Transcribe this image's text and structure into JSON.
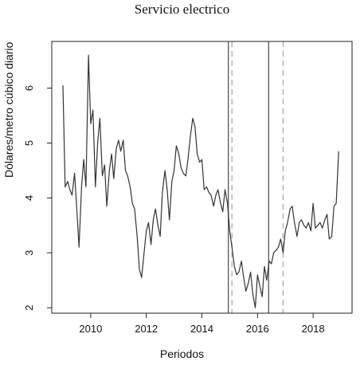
{
  "chart_data": {
    "type": "line",
    "title": "Servicio electrico",
    "xlabel": "Periodos",
    "ylabel": "Dólares/metro cúbico diario",
    "xlim": [
      2008.6,
      2019.4
    ],
    "ylim": [
      1.9,
      6.85
    ],
    "x_ticks": [
      2010,
      2012,
      2014,
      2016,
      2018
    ],
    "y_ticks": [
      2,
      3,
      4,
      5,
      6
    ],
    "grid": false,
    "series": [
      {
        "x": [
          2009.0,
          2009.08,
          2009.17,
          2009.25,
          2009.33,
          2009.42,
          2009.5,
          2009.58,
          2009.67,
          2009.75,
          2009.83,
          2009.92,
          2010.0,
          2010.08,
          2010.17,
          2010.25,
          2010.33,
          2010.42,
          2010.5,
          2010.58,
          2010.67,
          2010.75,
          2010.83,
          2010.92,
          2011.0,
          2011.08,
          2011.17,
          2011.25,
          2011.33,
          2011.42,
          2011.5,
          2011.58,
          2011.67,
          2011.75,
          2011.83,
          2011.92,
          2012.0,
          2012.08,
          2012.17,
          2012.25,
          2012.33,
          2012.42,
          2012.5,
          2012.58,
          2012.67,
          2012.75,
          2012.83,
          2012.92,
          2013.0,
          2013.08,
          2013.17,
          2013.25,
          2013.33,
          2013.42,
          2013.5,
          2013.58,
          2013.67,
          2013.75,
          2013.83,
          2013.92,
          2014.0,
          2014.08,
          2014.17,
          2014.25,
          2014.33,
          2014.42,
          2014.5,
          2014.58,
          2014.67,
          2014.75,
          2014.83,
          2014.92,
          2015.0,
          2015.08,
          2015.17,
          2015.25,
          2015.33,
          2015.42,
          2015.5,
          2015.58,
          2015.67,
          2015.75,
          2015.83,
          2015.92,
          2016.0,
          2016.08,
          2016.17,
          2016.25,
          2016.33,
          2016.42,
          2016.5,
          2016.58,
          2016.67,
          2016.75,
          2016.83,
          2016.92,
          2017.0,
          2017.08,
          2017.17,
          2017.25,
          2017.33,
          2017.42,
          2017.5,
          2017.58,
          2017.67,
          2017.75,
          2017.83,
          2017.92,
          2018.0,
          2018.08,
          2018.17,
          2018.25,
          2018.33,
          2018.42,
          2018.5,
          2018.58,
          2018.67,
          2018.75,
          2018.83,
          2018.92
        ],
        "y": [
          6.05,
          4.2,
          4.3,
          4.15,
          4.05,
          4.45,
          3.8,
          3.1,
          4.2,
          4.7,
          4.2,
          6.6,
          5.35,
          5.6,
          4.2,
          5.0,
          5.45,
          4.4,
          4.6,
          3.85,
          4.5,
          4.8,
          4.35,
          4.9,
          5.05,
          4.85,
          5.05,
          4.5,
          4.4,
          4.2,
          3.9,
          3.8,
          3.3,
          2.7,
          2.55,
          3.0,
          3.4,
          3.55,
          3.15,
          3.6,
          3.8,
          3.5,
          3.3,
          4.1,
          4.5,
          4.15,
          3.6,
          4.3,
          4.5,
          4.95,
          4.8,
          4.55,
          4.45,
          4.4,
          4.7,
          5.1,
          5.45,
          5.3,
          4.8,
          4.65,
          4.7,
          4.15,
          4.2,
          4.1,
          4.05,
          3.85,
          4.05,
          4.15,
          3.9,
          3.75,
          4.15,
          3.9,
          3.4,
          3.1,
          2.75,
          2.6,
          2.65,
          2.85,
          2.55,
          2.3,
          2.45,
          2.65,
          2.25,
          2.0,
          2.6,
          2.4,
          2.2,
          2.75,
          2.5,
          2.85,
          2.8,
          3.0,
          3.05,
          3.1,
          3.25,
          3.0,
          3.4,
          3.55,
          3.8,
          3.85,
          3.55,
          3.3,
          3.55,
          3.6,
          3.5,
          3.45,
          3.55,
          3.4,
          3.9,
          3.45,
          3.5,
          3.55,
          3.45,
          3.6,
          3.7,
          3.25,
          3.3,
          3.85,
          3.9,
          4.85
        ]
      }
    ],
    "vertical_lines": [
      {
        "x": 2014.95,
        "style": "solid",
        "color": "#555555"
      },
      {
        "x": 2015.08,
        "style": "dashed",
        "color": "#aaaaaa"
      },
      {
        "x": 2016.4,
        "style": "solid",
        "color": "#555555"
      },
      {
        "x": 2016.92,
        "style": "dashed",
        "color": "#aaaaaa"
      }
    ],
    "line_color": "#333333"
  }
}
